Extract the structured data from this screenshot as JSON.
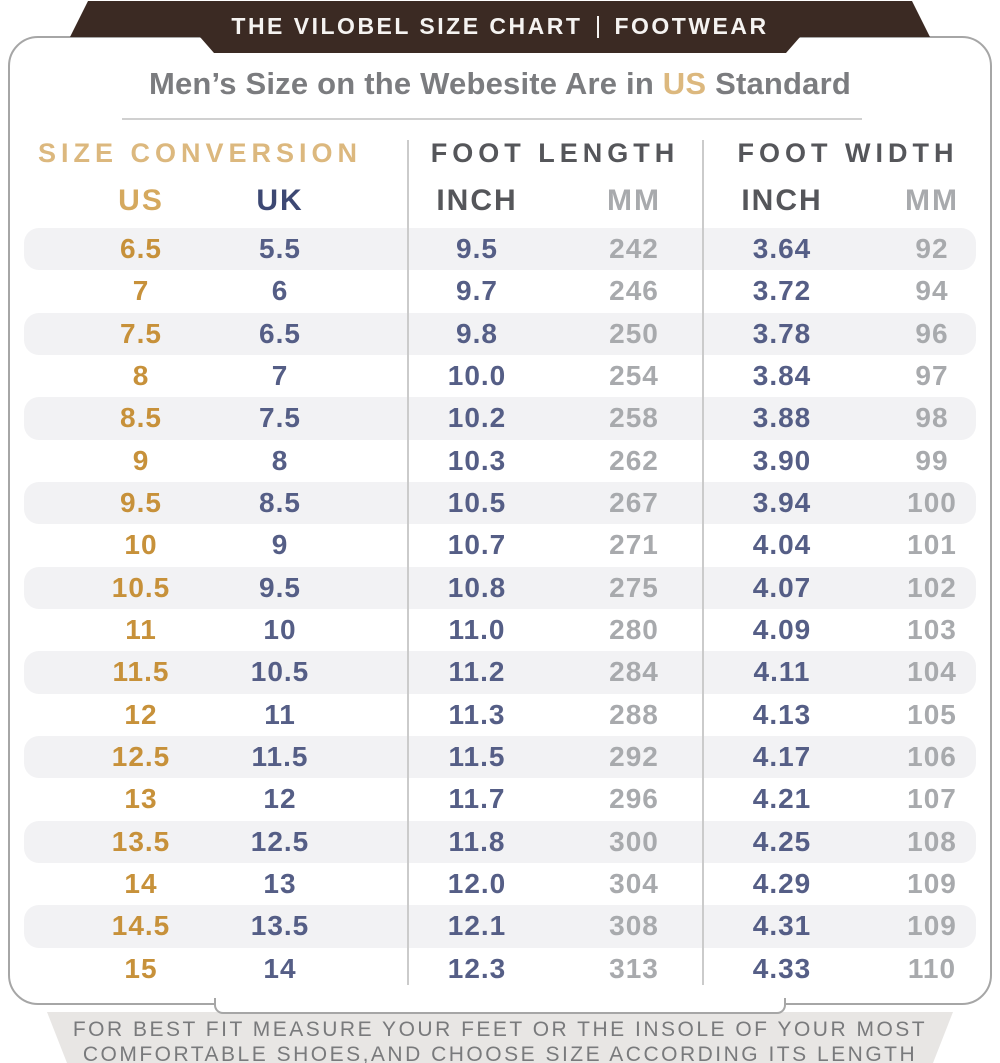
{
  "banner": {
    "title_left": "THE VILOBEL SIZE CHART",
    "title_right": "FOOTWEAR"
  },
  "title": {
    "prefix": "Men’s Size on the Webesite Are in ",
    "highlight": "US",
    "suffix": " Standard"
  },
  "footer": {
    "line1": "FOR BEST FIT MEASURE YOUR FEET OR THE INSOLE OF YOUR MOST",
    "line2": "COMFORTABLE SHOES,AND CHOOSE SIZE ACCORDING ITS LENGTH"
  },
  "colors": {
    "banner_brown": "#3b2a23",
    "tan_accent": "#dcb87e",
    "us_value_gold": "#c7913a",
    "uk_header_navy": "#3d4873",
    "inch_value_slate": "#555e86",
    "mm_value_gray": "#a8aaad",
    "header_dark_gray": "#55565a",
    "title_gray": "#7b7c7f",
    "row_stripe": "#f2f2f4",
    "footer_band": "#e8e6e4",
    "card_border": "#a6a6a6"
  },
  "chart_data": {
    "type": "table",
    "title": "Men’s Size on the Webesite Are in US Standard",
    "column_groups": [
      "SIZE CONVERSION",
      "FOOT LENGTH",
      "FOOT WIDTH"
    ],
    "columns": [
      "US",
      "UK",
      "INCH",
      "MM",
      "INCH",
      "MM"
    ],
    "rows": [
      [
        "6.5",
        "5.5",
        "9.5",
        "242",
        "3.64",
        "92"
      ],
      [
        "7",
        "6",
        "9.7",
        "246",
        "3.72",
        "94"
      ],
      [
        "7.5",
        "6.5",
        "9.8",
        "250",
        "3.78",
        "96"
      ],
      [
        "8",
        "7",
        "10.0",
        "254",
        "3.84",
        "97"
      ],
      [
        "8.5",
        "7.5",
        "10.2",
        "258",
        "3.88",
        "98"
      ],
      [
        "9",
        "8",
        "10.3",
        "262",
        "3.90",
        "99"
      ],
      [
        "9.5",
        "8.5",
        "10.5",
        "267",
        "3.94",
        "100"
      ],
      [
        "10",
        "9",
        "10.7",
        "271",
        "4.04",
        "101"
      ],
      [
        "10.5",
        "9.5",
        "10.8",
        "275",
        "4.07",
        "102"
      ],
      [
        "11",
        "10",
        "11.0",
        "280",
        "4.09",
        "103"
      ],
      [
        "11.5",
        "10.5",
        "11.2",
        "284",
        "4.11",
        "104"
      ],
      [
        "12",
        "11",
        "11.3",
        "288",
        "4.13",
        "105"
      ],
      [
        "12.5",
        "11.5",
        "11.5",
        "292",
        "4.17",
        "106"
      ],
      [
        "13",
        "12",
        "11.7",
        "296",
        "4.21",
        "107"
      ],
      [
        "13.5",
        "12.5",
        "11.8",
        "300",
        "4.25",
        "108"
      ],
      [
        "14",
        "13",
        "12.0",
        "304",
        "4.29",
        "109"
      ],
      [
        "14.5",
        "13.5",
        "12.1",
        "308",
        "4.31",
        "109"
      ],
      [
        "15",
        "14",
        "12.3",
        "313",
        "4.33",
        "110"
      ]
    ]
  }
}
